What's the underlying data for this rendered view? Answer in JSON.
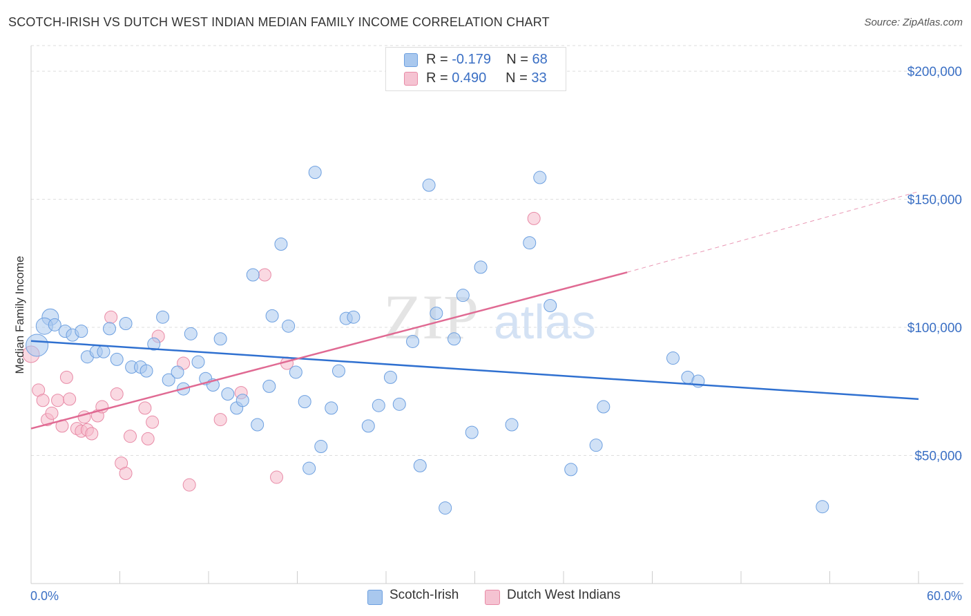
{
  "title": "SCOTCH-IRISH VS DUTCH WEST INDIAN MEDIAN FAMILY INCOME CORRELATION CHART",
  "source": "Source: ZipAtlas.com",
  "watermark": {
    "zip": "ZIP",
    "atlas": "atlas"
  },
  "legend_top": {
    "rows": [
      {
        "r_label": "R =",
        "r_value": "-0.179",
        "n_label": "N =",
        "n_value": "68"
      },
      {
        "r_label": "R =",
        "r_value": "0.490",
        "n_label": "N =",
        "n_value": "33"
      }
    ]
  },
  "colors": {
    "blue_fill": "#a9c8ee",
    "blue_stroke": "#6c9fe0",
    "blue_line": "#2f70d0",
    "pink_fill": "#f5b9cb",
    "pink_stroke": "#e88aa6",
    "pink_line": "#e06a93",
    "axis_text": "#3a6fc4",
    "grid": "#dddddd"
  },
  "chart_data": {
    "type": "scatter",
    "title": "SCOTCH-IRISH VS DUTCH WEST INDIAN MEDIAN FAMILY INCOME CORRELATION CHART",
    "xlabel": "",
    "ylabel": "Median Family Income",
    "xlim": [
      0,
      60
    ],
    "ylim": [
      0,
      210000
    ],
    "x_tick_labels": [
      "0.0%",
      "60.0%"
    ],
    "y_ticks": [
      50000,
      100000,
      150000,
      200000
    ],
    "y_tick_labels": [
      "$50,000",
      "$100,000",
      "$150,000",
      "$200,000"
    ],
    "grid": true,
    "legend_placement": "bottom-center",
    "series": [
      {
        "name": "Scotch-Irish",
        "color": "blue",
        "r": -0.179,
        "n": 68,
        "trend": {
          "x": [
            0,
            60
          ],
          "y": [
            94700,
            72000
          ]
        },
        "points": [
          [
            0.4,
            93000,
            3
          ],
          [
            1.3,
            104000,
            2
          ],
          [
            0.9,
            100500,
            2
          ],
          [
            1.6,
            101000,
            1
          ],
          [
            2.3,
            98500,
            1
          ],
          [
            2.8,
            97000,
            1
          ],
          [
            3.4,
            98500,
            1
          ],
          [
            3.8,
            88500,
            1
          ],
          [
            4.4,
            90500,
            1
          ],
          [
            4.9,
            90500,
            1
          ],
          [
            5.3,
            99500,
            1
          ],
          [
            5.8,
            87500,
            1
          ],
          [
            6.4,
            101500,
            1
          ],
          [
            6.8,
            84500,
            1
          ],
          [
            7.4,
            84500,
            1
          ],
          [
            7.8,
            83000,
            1
          ],
          [
            8.3,
            93500,
            1
          ],
          [
            8.9,
            104000,
            1
          ],
          [
            9.3,
            79500,
            1
          ],
          [
            9.9,
            82500,
            1
          ],
          [
            10.3,
            76000,
            1
          ],
          [
            10.8,
            97500,
            1
          ],
          [
            11.3,
            86500,
            1
          ],
          [
            11.8,
            80000,
            1
          ],
          [
            12.3,
            77500,
            1
          ],
          [
            12.8,
            95500,
            1
          ],
          [
            13.3,
            74000,
            1
          ],
          [
            13.9,
            68500,
            1
          ],
          [
            14.3,
            71500,
            1
          ],
          [
            15.0,
            120500,
            1
          ],
          [
            15.3,
            62000,
            1
          ],
          [
            16.1,
            77000,
            1
          ],
          [
            16.3,
            104500,
            1
          ],
          [
            16.9,
            132500,
            1
          ],
          [
            17.4,
            100500,
            1
          ],
          [
            17.9,
            82500,
            1
          ],
          [
            18.5,
            71000,
            1
          ],
          [
            18.8,
            45000,
            1
          ],
          [
            19.2,
            160500,
            1
          ],
          [
            19.6,
            53500,
            1
          ],
          [
            20.3,
            68500,
            1
          ],
          [
            20.8,
            83000,
            1
          ],
          [
            21.3,
            103500,
            1
          ],
          [
            21.8,
            104000,
            1
          ],
          [
            22.8,
            61500,
            1
          ],
          [
            23.5,
            69500,
            1
          ],
          [
            24.3,
            80500,
            1
          ],
          [
            24.9,
            70000,
            1
          ],
          [
            25.8,
            94500,
            1
          ],
          [
            26.3,
            46000,
            1
          ],
          [
            26.9,
            155500,
            1
          ],
          [
            27.4,
            105500,
            1
          ],
          [
            28.0,
            29500,
            1
          ],
          [
            28.6,
            95500,
            1
          ],
          [
            29.2,
            112500,
            1
          ],
          [
            29.8,
            59000,
            1
          ],
          [
            30.4,
            123500,
            1
          ],
          [
            32.5,
            62000,
            1
          ],
          [
            33.7,
            133000,
            1
          ],
          [
            34.4,
            158500,
            1
          ],
          [
            35.1,
            108500,
            1
          ],
          [
            36.5,
            44500,
            1
          ],
          [
            38.2,
            54000,
            1
          ],
          [
            38.7,
            69000,
            1
          ],
          [
            43.4,
            88000,
            1
          ],
          [
            44.4,
            80500,
            1
          ],
          [
            45.1,
            79000,
            1
          ],
          [
            53.5,
            30000,
            1
          ]
        ]
      },
      {
        "name": "Dutch West Indians",
        "color": "pink",
        "r": 0.49,
        "n": 33,
        "trend": {
          "x": [
            0,
            40.3
          ],
          "y": [
            60500,
            121500
          ]
        },
        "trend_dashed": {
          "x": [
            40.3,
            60
          ],
          "y": [
            121500,
            153000
          ]
        },
        "points": [
          [
            0.0,
            89500,
            2
          ],
          [
            0.5,
            75500,
            1
          ],
          [
            0.8,
            71500,
            1
          ],
          [
            1.1,
            64000,
            1
          ],
          [
            1.4,
            66500,
            1
          ],
          [
            1.8,
            71500,
            1
          ],
          [
            2.1,
            61500,
            1
          ],
          [
            2.4,
            80500,
            1
          ],
          [
            2.6,
            72000,
            1
          ],
          [
            3.1,
            60500,
            1
          ],
          [
            3.4,
            59500,
            1
          ],
          [
            3.6,
            65000,
            1
          ],
          [
            3.8,
            60000,
            1
          ],
          [
            4.1,
            58500,
            1
          ],
          [
            4.5,
            65500,
            1
          ],
          [
            4.8,
            69000,
            1
          ],
          [
            5.4,
            104000,
            1
          ],
          [
            5.8,
            74000,
            1
          ],
          [
            6.1,
            47000,
            1
          ],
          [
            6.4,
            43000,
            1
          ],
          [
            6.7,
            57500,
            1
          ],
          [
            7.7,
            68500,
            1
          ],
          [
            7.9,
            56500,
            1
          ],
          [
            8.2,
            63000,
            1
          ],
          [
            8.6,
            96500,
            1
          ],
          [
            10.3,
            86000,
            1
          ],
          [
            10.7,
            38500,
            1
          ],
          [
            12.8,
            64000,
            1
          ],
          [
            14.2,
            74500,
            1
          ],
          [
            15.8,
            120500,
            1
          ],
          [
            16.6,
            41500,
            1
          ],
          [
            17.3,
            86000,
            1
          ],
          [
            34.0,
            142500,
            1
          ]
        ]
      }
    ]
  }
}
